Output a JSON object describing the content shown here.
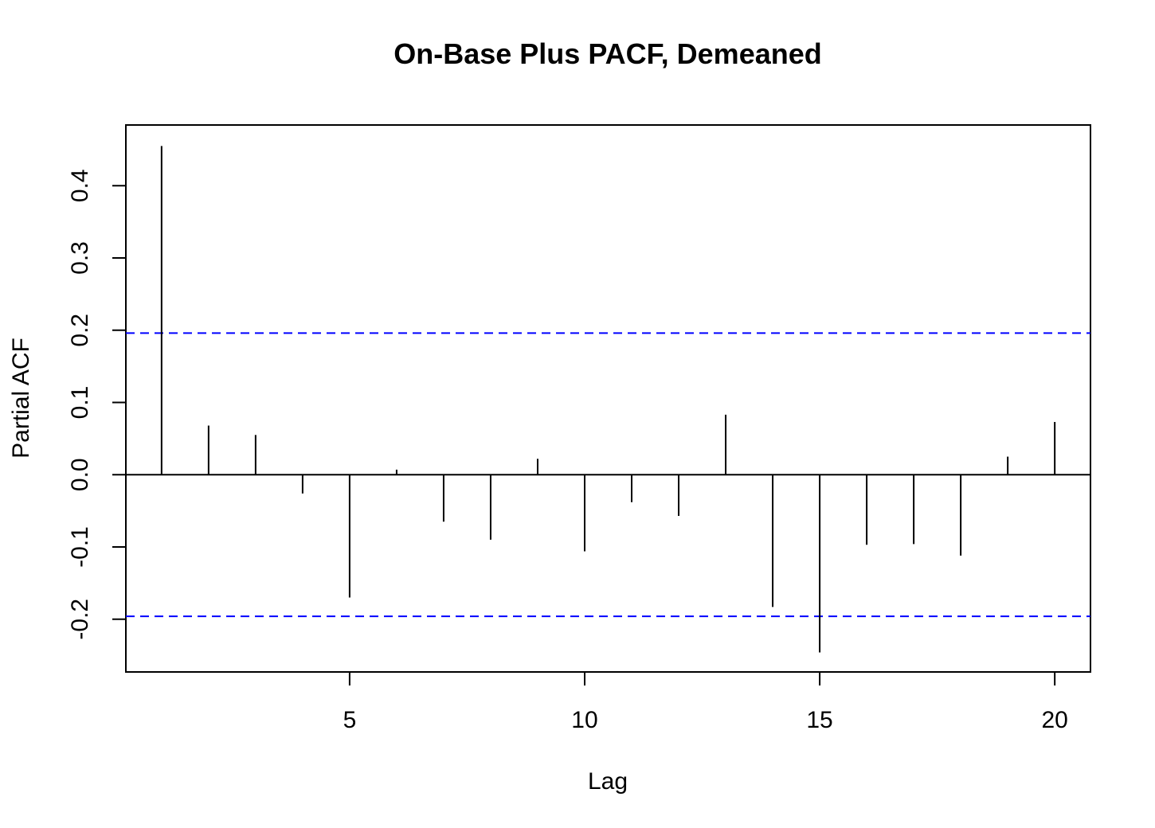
{
  "chart_data": {
    "type": "bar",
    "title": "On-Base Plus PACF, Demeaned",
    "xlabel": "Lag",
    "ylabel": "Partial ACF",
    "x": [
      1,
      2,
      3,
      4,
      5,
      6,
      7,
      8,
      9,
      10,
      11,
      12,
      13,
      14,
      15,
      16,
      17,
      18,
      19,
      20
    ],
    "values": [
      0.455,
      0.068,
      0.055,
      -0.026,
      -0.17,
      0.007,
      -0.065,
      -0.09,
      0.022,
      -0.106,
      -0.038,
      -0.057,
      0.083,
      -0.183,
      -0.246,
      -0.097,
      -0.096,
      -0.112,
      0.025,
      0.073
    ],
    "confidence_bound": 0.196,
    "xticks": [
      5,
      10,
      15,
      20
    ],
    "xtick_labels": [
      "5",
      "10",
      "15",
      "20"
    ],
    "yticks": [
      -0.2,
      -0.1,
      0.0,
      0.1,
      0.2,
      0.3,
      0.4
    ],
    "ytick_labels": [
      "-0.2",
      "-0.1",
      "0.0",
      "0.1",
      "0.2",
      "0.3",
      "0.4"
    ],
    "xlim": [
      0.24,
      20.76
    ],
    "ylim": [
      -0.273,
      0.484
    ],
    "colors": {
      "bars": "#000000",
      "confidence": "#0000ff",
      "frame": "#000000"
    }
  }
}
